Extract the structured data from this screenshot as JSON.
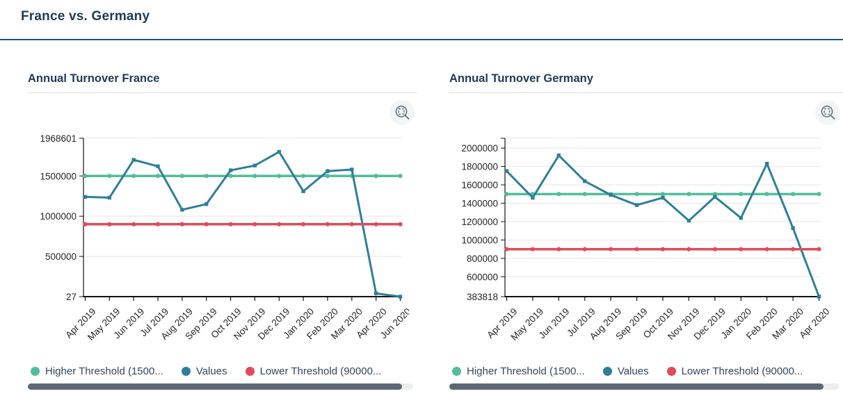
{
  "page": {
    "title": "France vs. Germany"
  },
  "colors": {
    "heading": "#1d3a56",
    "header_rule": "#175480",
    "higher_threshold": "#52bd9b",
    "values": "#2f7e99",
    "lower_threshold": "#e04b59",
    "legend_text": "#33475b",
    "scrollbar_thumb": "#5d6874"
  },
  "charts": [
    {
      "title": "Annual Turnover France",
      "toolbar_icon": "zoom-selection-icon",
      "legend": [
        {
          "label": "Higher Threshold (1500...",
          "color": "#52bd9b"
        },
        {
          "label": "Values",
          "color": "#2f7e99"
        },
        {
          "label": "Lower Threshold (90000...",
          "color": "#e04b59"
        }
      ],
      "scrollbar_thumb_pct": 97
    },
    {
      "title": "Annual Turnover Germany",
      "toolbar_icon": "zoom-selection-icon",
      "legend": [
        {
          "label": "Higher Threshold (1500...",
          "color": "#52bd9b"
        },
        {
          "label": "Values",
          "color": "#2f7e99"
        },
        {
          "label": "Lower Threshold (90000...",
          "color": "#e04b59"
        }
      ],
      "scrollbar_thumb_pct": 96
    }
  ],
  "chart_data": [
    {
      "type": "line",
      "title": "Annual Turnover France",
      "categories": [
        "Apr 2019",
        "May 2019",
        "Jun 2019",
        "Jul 2019",
        "Aug 2019",
        "Sep 2019",
        "Oct 2019",
        "Nov 2019",
        "Dec 2019",
        "Jan 2020",
        "Feb 2020",
        "Mar 2020",
        "Apr 2020",
        "Jun 2020"
      ],
      "series": [
        {
          "id": "higher-threshold",
          "name": "Higher Threshold (1500...",
          "value": 1500000,
          "color": "#52bd9b",
          "marker": "circle"
        },
        {
          "id": "values",
          "name": "Values",
          "values": [
            1240000,
            1230000,
            1700000,
            1620000,
            1080000,
            1150000,
            1570000,
            1630000,
            1800000,
            1310000,
            1560000,
            1580000,
            40000,
            27
          ],
          "color": "#2f7e99",
          "marker": "square"
        },
        {
          "id": "lower-threshold",
          "name": "Lower Threshold (90000...",
          "value": 900000,
          "color": "#e04b59",
          "marker": "circle"
        }
      ],
      "y_ticks": [
        1968601,
        1500000,
        1000000,
        500000,
        27
      ],
      "ylim": [
        27,
        1968601
      ],
      "top_tick_unlabeled": false,
      "grid": true,
      "legend_position": "bottom",
      "xlabel": "",
      "ylabel": ""
    },
    {
      "type": "line",
      "title": "Annual Turnover Germany",
      "categories": [
        "Apr 2019",
        "May 2019",
        "Jun 2019",
        "Jul 2019",
        "Aug 2019",
        "Sep 2019",
        "Oct 2019",
        "Nov 2019",
        "Dec 2019",
        "Jan 2020",
        "Feb 2020",
        "Mar 2020",
        "Apr 2020"
      ],
      "series": [
        {
          "id": "higher-threshold",
          "name": "Higher Threshold (1500...",
          "value": 1500000,
          "color": "#52bd9b",
          "marker": "circle"
        },
        {
          "id": "values",
          "name": "Values",
          "values": [
            1750000,
            1460000,
            1920000,
            1640000,
            1490000,
            1380000,
            1460000,
            1210000,
            1470000,
            1240000,
            1830000,
            1130000,
            383818
          ],
          "color": "#2f7e99",
          "marker": "square"
        },
        {
          "id": "lower-threshold",
          "name": "Lower Threshold (90000...",
          "value": 900000,
          "color": "#e04b59",
          "marker": "circle"
        }
      ],
      "y_ticks": [
        2000000,
        1800000,
        1600000,
        1400000,
        1200000,
        1000000,
        800000,
        600000,
        383818
      ],
      "ylim": [
        383818,
        2107000
      ],
      "top_tick_unlabeled": true,
      "grid": true,
      "legend_position": "bottom",
      "xlabel": "",
      "ylabel": ""
    }
  ]
}
